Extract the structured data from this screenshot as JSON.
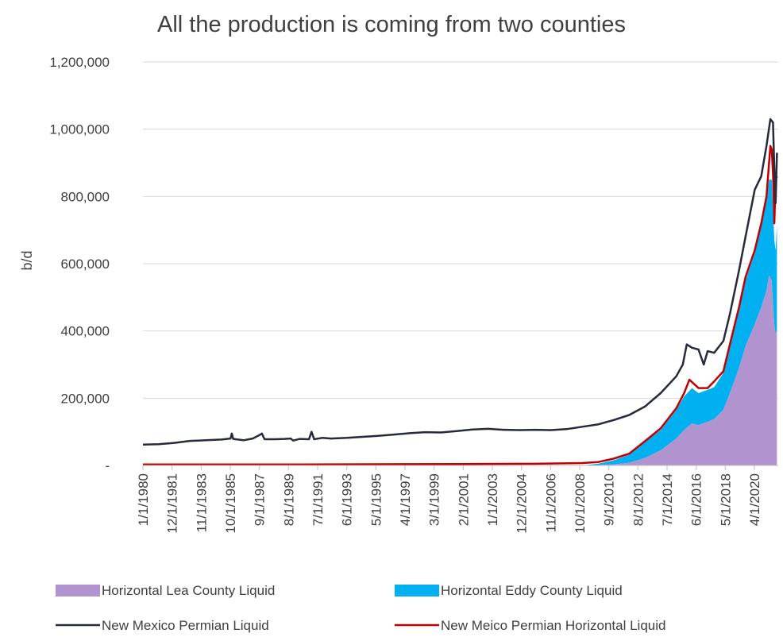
{
  "chart_data": {
    "type": "area",
    "title": "All the production is coming from two counties",
    "xlabel": "",
    "ylabel": "b/d",
    "ylim": [
      0,
      1200000
    ],
    "xlim": [
      "1980-01",
      "2020-07"
    ],
    "yticks": [
      0,
      200000,
      400000,
      600000,
      800000,
      1000000,
      1200000
    ],
    "ytick_labels": [
      "-",
      "200,000",
      "400,000",
      "600,000",
      "800,000",
      "1,000,000",
      "1,200,000"
    ],
    "xtick_labels": [
      "1/1/1980",
      "12/1/1981",
      "11/1/1983",
      "10/1/1985",
      "9/1/1987",
      "8/1/1989",
      "7/1/1991",
      "6/1/1993",
      "5/1/1995",
      "4/1/1997",
      "3/1/1999",
      "2/1/2001",
      "1/1/2003",
      "12/1/2004",
      "11/1/2006",
      "10/1/2008",
      "9/1/2010",
      "8/1/2012",
      "7/1/2014",
      "6/1/2016",
      "5/1/2018",
      "4/1/2020"
    ],
    "grid": true,
    "legend_position": "bottom",
    "series": [
      {
        "name": "Horizontal Lea County Liquid",
        "kind": "stacked-area",
        "color": "#b194cf",
        "points": [
          [
            "2008-01",
            0
          ],
          [
            "2009-01",
            1000
          ],
          [
            "2010-01",
            3000
          ],
          [
            "2011-01",
            8000
          ],
          [
            "2012-01",
            22000
          ],
          [
            "2013-01",
            45000
          ],
          [
            "2014-01",
            80000
          ],
          [
            "2014-07",
            105000
          ],
          [
            "2015-01",
            125000
          ],
          [
            "2015-06",
            120000
          ],
          [
            "2016-01",
            130000
          ],
          [
            "2016-06",
            138000
          ],
          [
            "2017-01",
            165000
          ],
          [
            "2017-06",
            215000
          ],
          [
            "2018-01",
            290000
          ],
          [
            "2018-06",
            355000
          ],
          [
            "2019-01",
            420000
          ],
          [
            "2019-06",
            470000
          ],
          [
            "2019-10",
            520000
          ],
          [
            "2019-12",
            565000
          ],
          [
            "2020-02",
            550000
          ],
          [
            "2020-04",
            420000
          ],
          [
            "2020-05",
            390000
          ],
          [
            "2020-06",
            405000
          ]
        ]
      },
      {
        "name": "Horizontal Eddy County Liquid",
        "kind": "stacked-area",
        "color": "#00b0f0",
        "points": [
          [
            "2008-01",
            0
          ],
          [
            "2009-01",
            4000
          ],
          [
            "2010-01",
            12000
          ],
          [
            "2011-01",
            24000
          ],
          [
            "2012-01",
            48000
          ],
          [
            "2013-01",
            60000
          ],
          [
            "2014-01",
            85000
          ],
          [
            "2014-07",
            100000
          ],
          [
            "2015-01",
            105000
          ],
          [
            "2015-06",
            95000
          ],
          [
            "2016-01",
            95000
          ],
          [
            "2016-06",
            95000
          ],
          [
            "2017-01",
            110000
          ],
          [
            "2017-06",
            145000
          ],
          [
            "2018-01",
            170000
          ],
          [
            "2018-06",
            195000
          ],
          [
            "2019-01",
            210000
          ],
          [
            "2019-06",
            240000
          ],
          [
            "2019-10",
            270000
          ],
          [
            "2019-12",
            285000
          ],
          [
            "2020-02",
            300000
          ],
          [
            "2020-04",
            250000
          ],
          [
            "2020-05",
            250000
          ],
          [
            "2020-06",
            310000
          ]
        ]
      },
      {
        "name": "New Mexico Permian Liquid",
        "kind": "line",
        "color": "#262a3b",
        "points": [
          [
            "1980-01",
            62000
          ],
          [
            "1981-01",
            63000
          ],
          [
            "1982-01",
            67000
          ],
          [
            "1983-01",
            73000
          ],
          [
            "1984-01",
            75000
          ],
          [
            "1985-01",
            77000
          ],
          [
            "1985-08",
            80000
          ],
          [
            "1985-09",
            95000
          ],
          [
            "1985-10",
            79000
          ],
          [
            "1986-06",
            75000
          ],
          [
            "1987-01",
            80000
          ],
          [
            "1987-06",
            90000
          ],
          [
            "1987-08",
            95000
          ],
          [
            "1987-10",
            78000
          ],
          [
            "1988-06",
            78000
          ],
          [
            "1989-01",
            79000
          ],
          [
            "1989-06",
            80000
          ],
          [
            "1989-08",
            74000
          ],
          [
            "1990-01",
            79000
          ],
          [
            "1990-08",
            78000
          ],
          [
            "1990-10",
            100000
          ],
          [
            "1990-12",
            78000
          ],
          [
            "1991-06",
            82000
          ],
          [
            "1992-01",
            80000
          ],
          [
            "1993-01",
            82000
          ],
          [
            "1994-01",
            85000
          ],
          [
            "1995-01",
            88000
          ],
          [
            "1996-01",
            92000
          ],
          [
            "1997-01",
            96000
          ],
          [
            "1998-01",
            99000
          ],
          [
            "1999-01",
            98000
          ],
          [
            "2000-01",
            102000
          ],
          [
            "2001-01",
            107000
          ],
          [
            "2002-01",
            109000
          ],
          [
            "2003-01",
            106000
          ],
          [
            "2004-01",
            105000
          ],
          [
            "2005-01",
            106000
          ],
          [
            "2006-01",
            105000
          ],
          [
            "2007-01",
            108000
          ],
          [
            "2008-01",
            115000
          ],
          [
            "2009-01",
            122000
          ],
          [
            "2010-01",
            135000
          ],
          [
            "2011-01",
            150000
          ],
          [
            "2012-01",
            175000
          ],
          [
            "2013-01",
            215000
          ],
          [
            "2014-01",
            265000
          ],
          [
            "2014-06",
            300000
          ],
          [
            "2014-09",
            360000
          ],
          [
            "2015-01",
            350000
          ],
          [
            "2015-06",
            345000
          ],
          [
            "2015-10",
            300000
          ],
          [
            "2016-01",
            340000
          ],
          [
            "2016-06",
            335000
          ],
          [
            "2017-01",
            370000
          ],
          [
            "2017-06",
            450000
          ],
          [
            "2018-01",
            580000
          ],
          [
            "2018-06",
            680000
          ],
          [
            "2019-01",
            820000
          ],
          [
            "2019-06",
            860000
          ],
          [
            "2019-10",
            950000
          ],
          [
            "2020-01",
            1030000
          ],
          [
            "2020-03",
            1020000
          ],
          [
            "2020-04",
            880000
          ],
          [
            "2020-05",
            780000
          ],
          [
            "2020-06",
            930000
          ]
        ]
      },
      {
        "name": "New Meico Permian Horizontal Liquid",
        "kind": "line",
        "color": "#c00000",
        "points": [
          [
            "1980-01",
            3000
          ],
          [
            "1990-01",
            3000
          ],
          [
            "2000-01",
            4000
          ],
          [
            "2005-01",
            5000
          ],
          [
            "2008-01",
            7000
          ],
          [
            "2009-01",
            10000
          ],
          [
            "2010-01",
            20000
          ],
          [
            "2011-01",
            35000
          ],
          [
            "2012-01",
            72000
          ],
          [
            "2013-01",
            110000
          ],
          [
            "2014-01",
            170000
          ],
          [
            "2014-07",
            215000
          ],
          [
            "2014-11",
            255000
          ],
          [
            "2015-06",
            230000
          ],
          [
            "2016-01",
            230000
          ],
          [
            "2016-06",
            250000
          ],
          [
            "2017-01",
            280000
          ],
          [
            "2017-06",
            360000
          ],
          [
            "2018-01",
            470000
          ],
          [
            "2018-06",
            560000
          ],
          [
            "2019-01",
            640000
          ],
          [
            "2019-06",
            720000
          ],
          [
            "2019-10",
            800000
          ],
          [
            "2020-01",
            950000
          ],
          [
            "2020-02",
            940000
          ],
          [
            "2020-03",
            870000
          ],
          [
            "2020-04",
            720000
          ],
          [
            "2020-05",
            850000
          ],
          [
            "2020-06",
            860000
          ]
        ]
      }
    ]
  }
}
